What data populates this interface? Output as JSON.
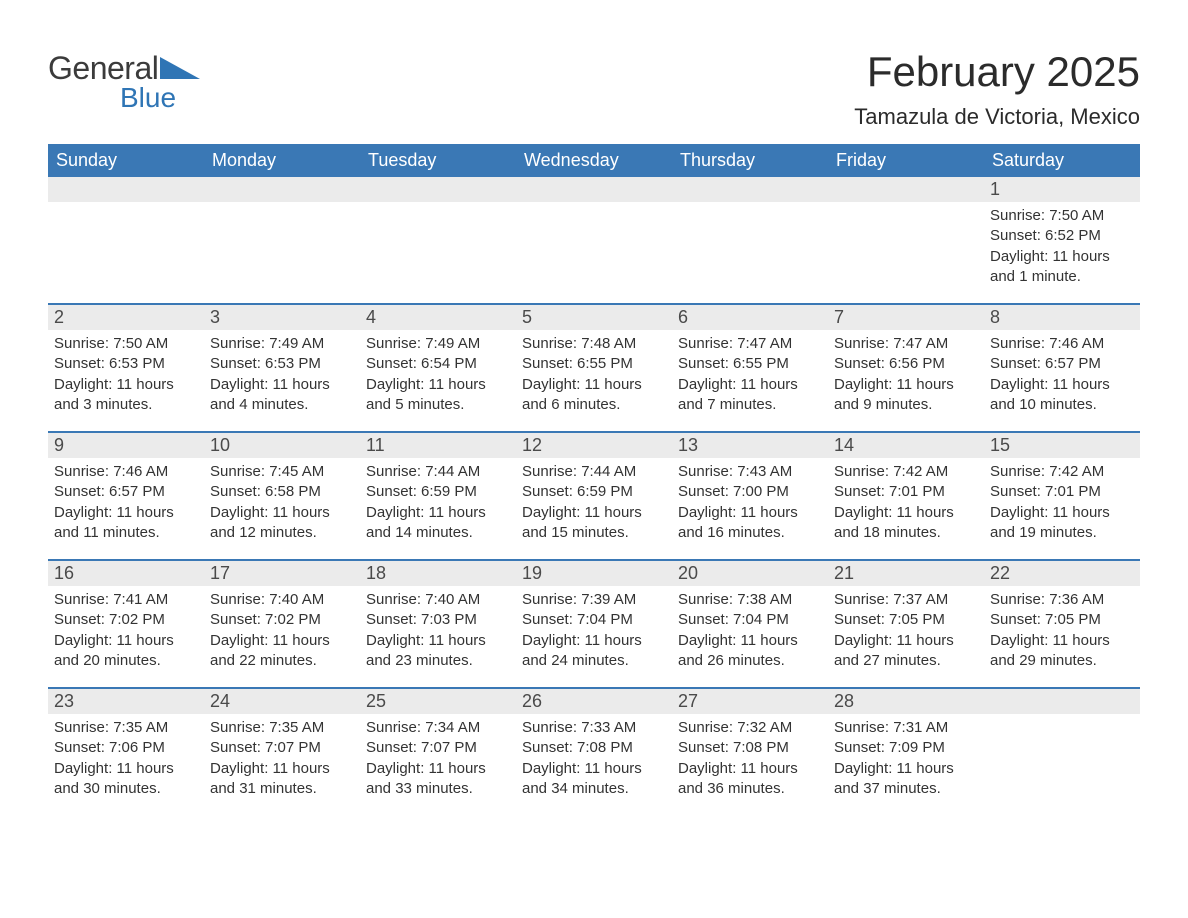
{
  "brand": {
    "name_general": "General",
    "name_blue": "Blue",
    "logo_fill": "#2f75b5",
    "text_dark": "#3b3b3b"
  },
  "title": {
    "month_year": "February 2025",
    "location": "Tamazula de Victoria, Mexico"
  },
  "colors": {
    "header_bg": "#3a78b5",
    "header_text": "#ffffff",
    "row_border": "#3a78b5",
    "daynum_bg": "#ebebeb",
    "body_text": "#333333",
    "page_bg": "#ffffff"
  },
  "weekdays": [
    "Sunday",
    "Monday",
    "Tuesday",
    "Wednesday",
    "Thursday",
    "Friday",
    "Saturday"
  ],
  "weeks": [
    [
      null,
      null,
      null,
      null,
      null,
      null,
      {
        "day": "1",
        "sunrise": "Sunrise: 7:50 AM",
        "sunset": "Sunset: 6:52 PM",
        "daylight1": "Daylight: 11 hours",
        "daylight2": "and 1 minute."
      }
    ],
    [
      {
        "day": "2",
        "sunrise": "Sunrise: 7:50 AM",
        "sunset": "Sunset: 6:53 PM",
        "daylight1": "Daylight: 11 hours",
        "daylight2": "and 3 minutes."
      },
      {
        "day": "3",
        "sunrise": "Sunrise: 7:49 AM",
        "sunset": "Sunset: 6:53 PM",
        "daylight1": "Daylight: 11 hours",
        "daylight2": "and 4 minutes."
      },
      {
        "day": "4",
        "sunrise": "Sunrise: 7:49 AM",
        "sunset": "Sunset: 6:54 PM",
        "daylight1": "Daylight: 11 hours",
        "daylight2": "and 5 minutes."
      },
      {
        "day": "5",
        "sunrise": "Sunrise: 7:48 AM",
        "sunset": "Sunset: 6:55 PM",
        "daylight1": "Daylight: 11 hours",
        "daylight2": "and 6 minutes."
      },
      {
        "day": "6",
        "sunrise": "Sunrise: 7:47 AM",
        "sunset": "Sunset: 6:55 PM",
        "daylight1": "Daylight: 11 hours",
        "daylight2": "and 7 minutes."
      },
      {
        "day": "7",
        "sunrise": "Sunrise: 7:47 AM",
        "sunset": "Sunset: 6:56 PM",
        "daylight1": "Daylight: 11 hours",
        "daylight2": "and 9 minutes."
      },
      {
        "day": "8",
        "sunrise": "Sunrise: 7:46 AM",
        "sunset": "Sunset: 6:57 PM",
        "daylight1": "Daylight: 11 hours",
        "daylight2": "and 10 minutes."
      }
    ],
    [
      {
        "day": "9",
        "sunrise": "Sunrise: 7:46 AM",
        "sunset": "Sunset: 6:57 PM",
        "daylight1": "Daylight: 11 hours",
        "daylight2": "and 11 minutes."
      },
      {
        "day": "10",
        "sunrise": "Sunrise: 7:45 AM",
        "sunset": "Sunset: 6:58 PM",
        "daylight1": "Daylight: 11 hours",
        "daylight2": "and 12 minutes."
      },
      {
        "day": "11",
        "sunrise": "Sunrise: 7:44 AM",
        "sunset": "Sunset: 6:59 PM",
        "daylight1": "Daylight: 11 hours",
        "daylight2": "and 14 minutes."
      },
      {
        "day": "12",
        "sunrise": "Sunrise: 7:44 AM",
        "sunset": "Sunset: 6:59 PM",
        "daylight1": "Daylight: 11 hours",
        "daylight2": "and 15 minutes."
      },
      {
        "day": "13",
        "sunrise": "Sunrise: 7:43 AM",
        "sunset": "Sunset: 7:00 PM",
        "daylight1": "Daylight: 11 hours",
        "daylight2": "and 16 minutes."
      },
      {
        "day": "14",
        "sunrise": "Sunrise: 7:42 AM",
        "sunset": "Sunset: 7:01 PM",
        "daylight1": "Daylight: 11 hours",
        "daylight2": "and 18 minutes."
      },
      {
        "day": "15",
        "sunrise": "Sunrise: 7:42 AM",
        "sunset": "Sunset: 7:01 PM",
        "daylight1": "Daylight: 11 hours",
        "daylight2": "and 19 minutes."
      }
    ],
    [
      {
        "day": "16",
        "sunrise": "Sunrise: 7:41 AM",
        "sunset": "Sunset: 7:02 PM",
        "daylight1": "Daylight: 11 hours",
        "daylight2": "and 20 minutes."
      },
      {
        "day": "17",
        "sunrise": "Sunrise: 7:40 AM",
        "sunset": "Sunset: 7:02 PM",
        "daylight1": "Daylight: 11 hours",
        "daylight2": "and 22 minutes."
      },
      {
        "day": "18",
        "sunrise": "Sunrise: 7:40 AM",
        "sunset": "Sunset: 7:03 PM",
        "daylight1": "Daylight: 11 hours",
        "daylight2": "and 23 minutes."
      },
      {
        "day": "19",
        "sunrise": "Sunrise: 7:39 AM",
        "sunset": "Sunset: 7:04 PM",
        "daylight1": "Daylight: 11 hours",
        "daylight2": "and 24 minutes."
      },
      {
        "day": "20",
        "sunrise": "Sunrise: 7:38 AM",
        "sunset": "Sunset: 7:04 PM",
        "daylight1": "Daylight: 11 hours",
        "daylight2": "and 26 minutes."
      },
      {
        "day": "21",
        "sunrise": "Sunrise: 7:37 AM",
        "sunset": "Sunset: 7:05 PM",
        "daylight1": "Daylight: 11 hours",
        "daylight2": "and 27 minutes."
      },
      {
        "day": "22",
        "sunrise": "Sunrise: 7:36 AM",
        "sunset": "Sunset: 7:05 PM",
        "daylight1": "Daylight: 11 hours",
        "daylight2": "and 29 minutes."
      }
    ],
    [
      {
        "day": "23",
        "sunrise": "Sunrise: 7:35 AM",
        "sunset": "Sunset: 7:06 PM",
        "daylight1": "Daylight: 11 hours",
        "daylight2": "and 30 minutes."
      },
      {
        "day": "24",
        "sunrise": "Sunrise: 7:35 AM",
        "sunset": "Sunset: 7:07 PM",
        "daylight1": "Daylight: 11 hours",
        "daylight2": "and 31 minutes."
      },
      {
        "day": "25",
        "sunrise": "Sunrise: 7:34 AM",
        "sunset": "Sunset: 7:07 PM",
        "daylight1": "Daylight: 11 hours",
        "daylight2": "and 33 minutes."
      },
      {
        "day": "26",
        "sunrise": "Sunrise: 7:33 AM",
        "sunset": "Sunset: 7:08 PM",
        "daylight1": "Daylight: 11 hours",
        "daylight2": "and 34 minutes."
      },
      {
        "day": "27",
        "sunrise": "Sunrise: 7:32 AM",
        "sunset": "Sunset: 7:08 PM",
        "daylight1": "Daylight: 11 hours",
        "daylight2": "and 36 minutes."
      },
      {
        "day": "28",
        "sunrise": "Sunrise: 7:31 AM",
        "sunset": "Sunset: 7:09 PM",
        "daylight1": "Daylight: 11 hours",
        "daylight2": "and 37 minutes."
      },
      null
    ]
  ]
}
